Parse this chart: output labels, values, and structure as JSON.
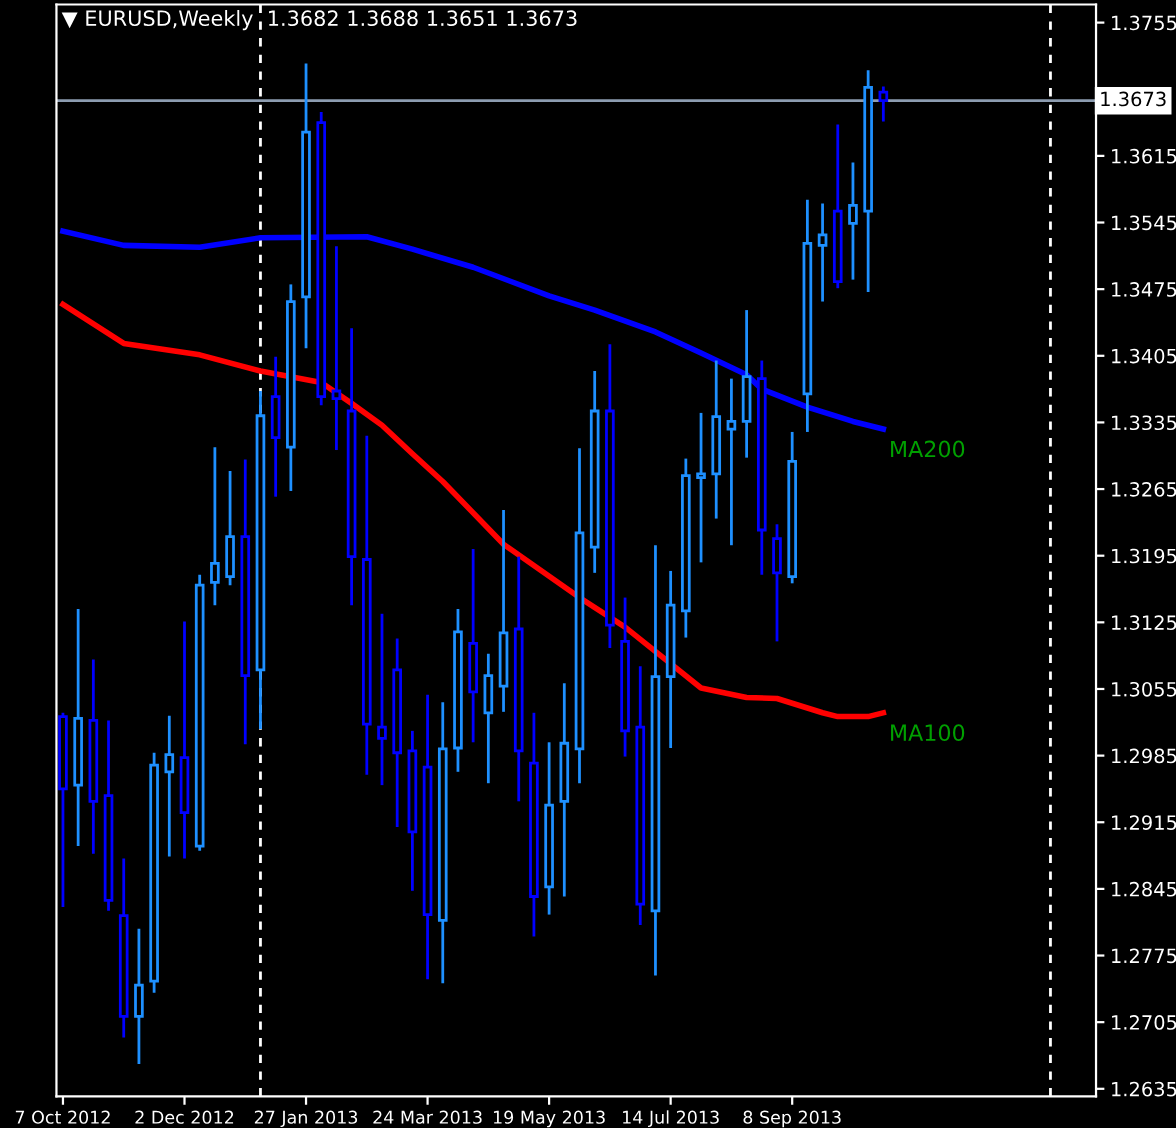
{
  "chart_data": {
    "type": "candlestick",
    "title": "▼ EURUSD,Weekly  1.3682 1.3688 1.3651 1.3673",
    "x": [
      "2012-10-07",
      "2012-10-14",
      "2012-10-21",
      "2012-10-28",
      "2012-11-04",
      "2012-11-11",
      "2012-11-18",
      "2012-11-25",
      "2012-12-02",
      "2012-12-09",
      "2012-12-16",
      "2012-12-23",
      "2012-12-30",
      "2013-01-06",
      "2013-01-13",
      "2013-01-20",
      "2013-01-27",
      "2013-02-03",
      "2013-02-10",
      "2013-02-17",
      "2013-02-24",
      "2013-03-03",
      "2013-03-10",
      "2013-03-17",
      "2013-03-24",
      "2013-03-31",
      "2013-04-07",
      "2013-04-14",
      "2013-04-21",
      "2013-04-28",
      "2013-05-05",
      "2013-05-12",
      "2013-05-19",
      "2013-05-26",
      "2013-06-02",
      "2013-06-09",
      "2013-06-16",
      "2013-06-23",
      "2013-06-30",
      "2013-07-07",
      "2013-07-14",
      "2013-07-21",
      "2013-07-28",
      "2013-08-04",
      "2013-08-11",
      "2013-08-18",
      "2013-08-25",
      "2013-09-01",
      "2013-09-08",
      "2013-09-15",
      "2013-09-22",
      "2013-09-29",
      "2013-10-06",
      "2013-10-13",
      "2013-10-20"
    ],
    "ohlc": [
      [
        1.3026,
        1.303,
        1.2826,
        1.295
      ],
      [
        1.2954,
        1.3139,
        1.289,
        1.3024
      ],
      [
        1.3022,
        1.3086,
        1.2882,
        1.2937
      ],
      [
        1.2943,
        1.3022,
        1.2822,
        1.2833
      ],
      [
        1.2817,
        1.2877,
        1.2689,
        1.2711
      ],
      [
        1.2711,
        1.2803,
        1.2661,
        1.2744
      ],
      [
        1.2748,
        1.2988,
        1.2736,
        1.2975
      ],
      [
        1.2968,
        1.3027,
        1.2879,
        1.2986
      ],
      [
        1.2983,
        1.3126,
        1.2877,
        1.2925
      ],
      [
        1.289,
        1.3175,
        1.2885,
        1.3164
      ],
      [
        1.3167,
        1.3309,
        1.3143,
        1.3187
      ],
      [
        1.3173,
        1.3284,
        1.3164,
        1.3215
      ],
      [
        1.3215,
        1.3296,
        1.2997,
        1.3069
      ],
      [
        1.3075,
        1.3368,
        1.3013,
        1.3342
      ],
      [
        1.3362,
        1.3404,
        1.3257,
        1.3319
      ],
      [
        1.3309,
        1.348,
        1.3263,
        1.3462
      ],
      [
        1.3467,
        1.3712,
        1.3413,
        1.364
      ],
      [
        1.365,
        1.3661,
        1.3353,
        1.3362
      ],
      [
        1.3368,
        1.352,
        1.3306,
        1.336
      ],
      [
        1.3347,
        1.3434,
        1.3143,
        1.3194
      ],
      [
        1.3191,
        1.3321,
        1.2965,
        1.3018
      ],
      [
        1.3015,
        1.3134,
        1.2954,
        1.3003
      ],
      [
        1.3075,
        1.3108,
        1.291,
        1.2988
      ],
      [
        1.299,
        1.3011,
        1.2843,
        1.2905
      ],
      [
        1.2973,
        1.3049,
        1.275,
        1.2818
      ],
      [
        1.2812,
        1.3041,
        1.2746,
        1.2992
      ],
      [
        1.2993,
        1.3139,
        1.2968,
        1.3115
      ],
      [
        1.3103,
        1.3202,
        1.2999,
        1.3052
      ],
      [
        1.303,
        1.3092,
        1.2956,
        1.3069
      ],
      [
        1.3058,
        1.3243,
        1.3031,
        1.3114
      ],
      [
        1.3118,
        1.3194,
        1.2937,
        1.299
      ],
      [
        1.2977,
        1.303,
        1.2795,
        1.2837
      ],
      [
        1.2847,
        1.2999,
        1.2818,
        1.2933
      ],
      [
        1.2937,
        1.3061,
        1.2837,
        1.2998
      ],
      [
        1.2992,
        1.3308,
        1.2956,
        1.3219
      ],
      [
        1.3204,
        1.3389,
        1.3177,
        1.3347
      ],
      [
        1.3347,
        1.3417,
        1.3098,
        1.3122
      ],
      [
        1.3105,
        1.3151,
        1.2984,
        1.3011
      ],
      [
        1.3015,
        1.3079,
        1.2807,
        1.2829
      ],
      [
        1.2822,
        1.3206,
        1.2754,
        1.3068
      ],
      [
        1.3068,
        1.3179,
        1.2993,
        1.3143
      ],
      [
        1.3137,
        1.3297,
        1.3109,
        1.3279
      ],
      [
        1.3277,
        1.3345,
        1.3188,
        1.3281
      ],
      [
        1.3281,
        1.34,
        1.3234,
        1.3341
      ],
      [
        1.3328,
        1.3381,
        1.3206,
        1.3336
      ],
      [
        1.3336,
        1.3453,
        1.3298,
        1.3383
      ],
      [
        1.3381,
        1.34,
        1.3175,
        1.3222
      ],
      [
        1.3213,
        1.3228,
        1.3105,
        1.3177
      ],
      [
        1.3173,
        1.3325,
        1.3166,
        1.3294
      ],
      [
        1.3365,
        1.3569,
        1.3325,
        1.3523
      ],
      [
        1.3521,
        1.3565,
        1.3462,
        1.3532
      ],
      [
        1.3557,
        1.3648,
        1.3476,
        1.3483
      ],
      [
        1.3544,
        1.3608,
        1.3485,
        1.3563
      ],
      [
        1.3557,
        1.3705,
        1.3472,
        1.3687
      ],
      [
        1.3682,
        1.3688,
        1.3651,
        1.3673
      ]
    ],
    "colors": [
      "#0000ff",
      "#1e90ff",
      "#0000ff",
      "#0000ff",
      "#0000ff",
      "#1e90ff",
      "#1e90ff",
      "#1e90ff",
      "#0000ff",
      "#1e90ff",
      "#1e90ff",
      "#1e90ff",
      "#0000ff",
      "#1e90ff",
      "#0000ff",
      "#1e90ff",
      "#1e90ff",
      "#0000ff",
      "#0000ff",
      "#0000ff",
      "#0000ff",
      "#0000ff",
      "#0000ff",
      "#0000ff",
      "#0000ff",
      "#1e90ff",
      "#1e90ff",
      "#0000ff",
      "#1e90ff",
      "#1e90ff",
      "#0000ff",
      "#0000ff",
      "#1e90ff",
      "#1e90ff",
      "#1e90ff",
      "#1e90ff",
      "#0000ff",
      "#0000ff",
      "#0000ff",
      "#1e90ff",
      "#1e90ff",
      "#1e90ff",
      "#1e90ff",
      "#1e90ff",
      "#1e90ff",
      "#1e90ff",
      "#0000ff",
      "#0000ff",
      "#1e90ff",
      "#1e90ff",
      "#1e90ff",
      "#0000ff",
      "#1e90ff",
      "#1e90ff",
      "#0000ff"
    ],
    "series": [
      {
        "name": "MA200",
        "type": "line",
        "color": "#0000ff",
        "x": [
          "2012-10-07",
          "2012-11-04",
          "2012-12-09",
          "2013-01-06",
          "2013-02-24",
          "2013-03-17",
          "2013-04-14",
          "2013-05-19",
          "2013-06-09",
          "2013-07-07",
          "2013-07-28",
          "2013-08-18",
          "2013-08-25",
          "2013-09-15",
          "2013-10-06",
          "2013-10-20"
        ],
        "values": [
          1.3536,
          1.3521,
          1.3519,
          1.3529,
          1.353,
          1.3517,
          1.3498,
          1.3468,
          1.3453,
          1.343,
          1.3408,
          1.3385,
          1.337,
          1.3351,
          1.3336,
          1.3328
        ]
      },
      {
        "name": "MA100",
        "type": "line",
        "color": "#ff0000",
        "x": [
          "2012-10-07",
          "2012-11-04",
          "2012-12-09",
          "2013-01-06",
          "2013-02-03",
          "2013-02-17",
          "2013-03-03",
          "2013-03-17",
          "2013-03-31",
          "2013-04-28",
          "2013-06-02",
          "2013-06-23",
          "2013-07-28",
          "2013-08-18",
          "2013-09-01",
          "2013-09-22",
          "2013-09-29",
          "2013-10-13",
          "2013-10-20"
        ],
        "values": [
          1.3459,
          1.3418,
          1.3406,
          1.3389,
          1.3377,
          1.3355,
          1.3332,
          1.3302,
          1.3273,
          1.3207,
          1.3151,
          1.312,
          1.3056,
          1.3046,
          1.3045,
          1.303,
          1.3026,
          1.3026,
          1.303
        ]
      }
    ],
    "xlim": [
      "2012-10-04",
      "2014-01-26"
    ],
    "xticks": [
      {
        "value": "2012-10-07",
        "label": "7 Oct 2012"
      },
      {
        "value": "2012-12-02",
        "label": "2 Dec 2012"
      },
      {
        "value": "2013-01-27",
        "label": "27 Jan 2013"
      },
      {
        "value": "2013-03-24",
        "label": "24 Mar 2013"
      },
      {
        "value": "2013-05-19",
        "label": "19 May 2013"
      },
      {
        "value": "2013-07-14",
        "label": "14 Jul 2013"
      },
      {
        "value": "2013-09-08",
        "label": "8 Sep 2013"
      }
    ],
    "ylim": [
      1.2627,
      1.3774
    ],
    "yticks": [
      1.2635,
      1.2705,
      1.2775,
      1.2845,
      1.2915,
      1.2985,
      1.3055,
      1.3125,
      1.3195,
      1.3265,
      1.3335,
      1.3405,
      1.3475,
      1.3545,
      1.3615,
      1.3755
    ],
    "ref_lines": [
      {
        "axis": "y",
        "value": 1.3673,
        "label": "1.3673",
        "color": "#8c9cb0",
        "line_style": "solid"
      },
      {
        "axis": "x",
        "value": "2013-01-06",
        "color": "#ffffff",
        "line_style": "dashed"
      },
      {
        "axis": "x",
        "value": "2014-01-05",
        "color": "#ffffff",
        "line_style": "dashed"
      }
    ],
    "grid": false,
    "legend": false
  }
}
